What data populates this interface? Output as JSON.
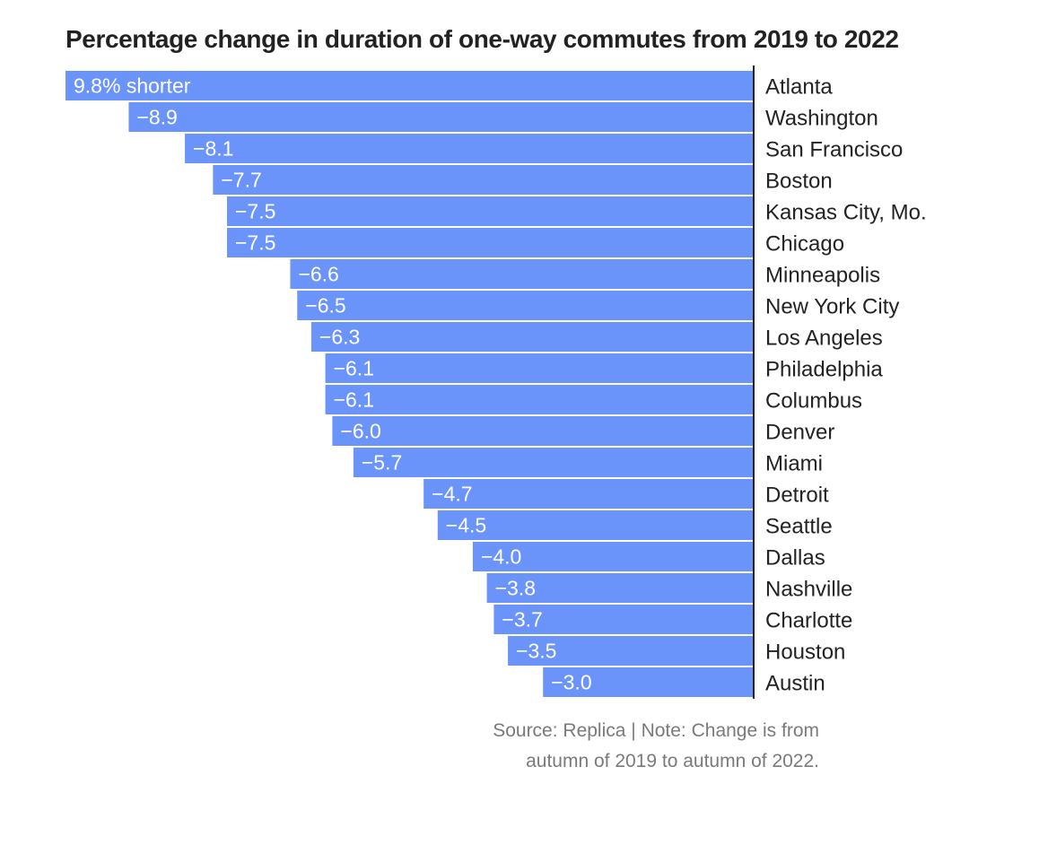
{
  "chart_data": {
    "type": "bar",
    "orientation": "horizontal",
    "title": "Percentage change in duration of one-way commutes from 2019 to 2022",
    "categories": [
      "Atlanta",
      "Washington",
      "San Francisco",
      "Boston",
      "Kansas City, Mo.",
      "Chicago",
      "Minneapolis",
      "New York City",
      "Los Angeles",
      "Philadelphia",
      "Columbus",
      "Denver",
      "Miami",
      "Detroit",
      "Seattle",
      "Dallas",
      "Nashville",
      "Charlotte",
      "Houston",
      "Austin"
    ],
    "values": [
      -9.8,
      -8.9,
      -8.1,
      -7.7,
      -7.5,
      -7.5,
      -6.6,
      -6.5,
      -6.3,
      -6.1,
      -6.1,
      -6.0,
      -5.7,
      -4.7,
      -4.5,
      -4.0,
      -3.8,
      -3.7,
      -3.5,
      -3.0
    ],
    "value_labels": [
      "9.8% shorter",
      "−8.9",
      "−8.1",
      "−7.7",
      "−7.5",
      "−7.5",
      "−6.6",
      "−6.5",
      "−6.3",
      "−6.1",
      "−6.1",
      "−6.0",
      "−5.7",
      "−4.7",
      "−4.5",
      "−4.0",
      "−3.8",
      "−3.7",
      "−3.5",
      "−3.0"
    ],
    "xlim": [
      -9.8,
      0
    ],
    "grid": false,
    "legend": "none",
    "bar_color": "#6b94fb",
    "baseline_color": "#222222",
    "note": [
      "Source: Replica | Note: Change is from",
      "autumn of 2019 to autumn of 2022."
    ]
  }
}
